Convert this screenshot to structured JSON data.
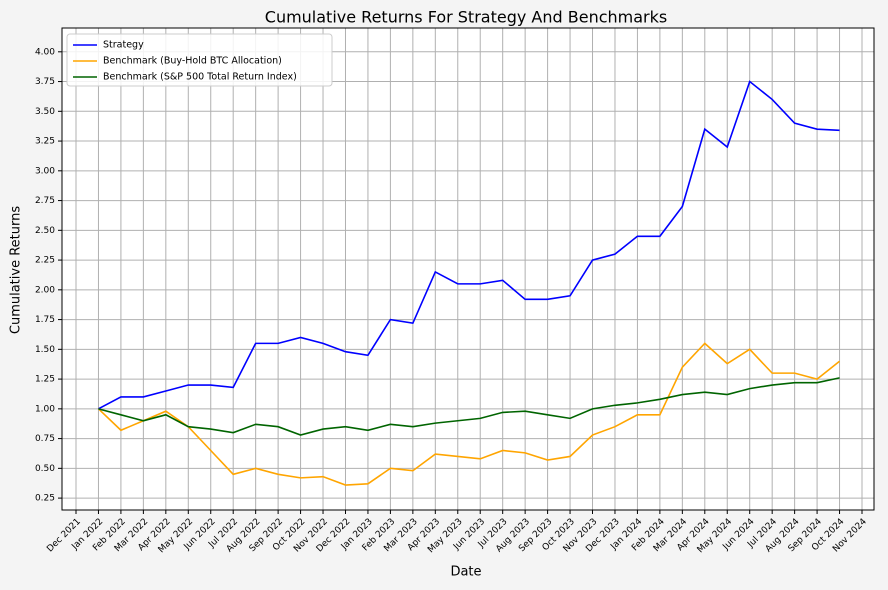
{
  "chart_data": {
    "type": "line",
    "title": "Cumulative Returns For Strategy And Benchmarks",
    "x_label": "Date",
    "y_label": "Cumulative Returns",
    "x": [
      "Jan 2022",
      "Feb 2022",
      "Mar 2022",
      "Apr 2022",
      "May 2022",
      "Jun 2022",
      "Jul 2022",
      "Aug 2022",
      "Sep 2022",
      "Oct 2022",
      "Nov 2022",
      "Dec 2022",
      "Jan 2023",
      "Feb 2023",
      "Mar 2023",
      "Apr 2023",
      "May 2023",
      "Jun 2023",
      "Jul 2023",
      "Aug 2023",
      "Sep 2023",
      "Oct 2023",
      "Nov 2023",
      "Dec 2023",
      "Jan 2024",
      "Feb 2024",
      "Mar 2024",
      "Apr 2024",
      "May 2024",
      "Jun 2024",
      "Jul 2024",
      "Aug 2024",
      "Sep 2024",
      "Oct 2024"
    ],
    "series": [
      {
        "name": "Strategy",
        "color": "#0000ff",
        "values": [
          1.0,
          1.1,
          1.1,
          1.15,
          1.2,
          1.2,
          1.18,
          1.55,
          1.55,
          1.6,
          1.55,
          1.48,
          1.45,
          1.75,
          1.72,
          2.15,
          2.05,
          2.05,
          2.08,
          1.92,
          1.92,
          1.95,
          2.25,
          2.3,
          2.45,
          2.45,
          2.7,
          3.35,
          3.2,
          3.75,
          3.6,
          3.4,
          3.35,
          3.34
        ]
      },
      {
        "name": "Benchmark (Buy-Hold BTC Allocation)",
        "color": "#ffa500",
        "values": [
          1.0,
          0.82,
          0.9,
          0.98,
          0.85,
          0.65,
          0.45,
          0.5,
          0.45,
          0.42,
          0.43,
          0.36,
          0.37,
          0.5,
          0.48,
          0.62,
          0.6,
          0.58,
          0.65,
          0.63,
          0.57,
          0.6,
          0.78,
          0.85,
          0.95,
          0.95,
          1.35,
          1.55,
          1.38,
          1.5,
          1.3,
          1.3,
          1.25,
          1.4
        ]
      },
      {
        "name": "Benchmark (S&P 500 Total Return Index)",
        "color": "#006400",
        "values": [
          1.0,
          0.95,
          0.9,
          0.95,
          0.85,
          0.83,
          0.8,
          0.87,
          0.85,
          0.78,
          0.83,
          0.85,
          0.82,
          0.87,
          0.85,
          0.88,
          0.9,
          0.92,
          0.97,
          0.98,
          0.95,
          0.92,
          1.0,
          1.03,
          1.05,
          1.08,
          1.12,
          1.14,
          1.12,
          1.17,
          1.2,
          1.22,
          1.22,
          1.26
        ]
      }
    ],
    "xticks": [
      "Dec 2021",
      "Jan 2022",
      "Feb 2022",
      "Mar 2022",
      "Apr 2022",
      "May 2022",
      "Jun 2022",
      "Jul 2022",
      "Aug 2022",
      "Sep 2022",
      "Oct 2022",
      "Nov 2022",
      "Dec 2022",
      "Jan 2023",
      "Feb 2023",
      "Mar 2023",
      "Apr 2023",
      "May 2023",
      "Jun 2023",
      "Jul 2023",
      "Aug 2023",
      "Sep 2023",
      "Oct 2023",
      "Nov 2023",
      "Dec 2023",
      "Jan 2024",
      "Feb 2024",
      "Mar 2024",
      "Apr 2024",
      "May 2024",
      "Jun 2024",
      "Jul 2024",
      "Aug 2024",
      "Sep 2024",
      "Oct 2024",
      "Nov 2024"
    ],
    "ylim": [
      0.15,
      4.2
    ],
    "yticks": [
      0.25,
      {
        "value": 0.5,
        "label": "0.50"
      },
      0.75,
      {
        "value": 1,
        "label": "1.00"
      },
      1.25,
      {
        "value": 1.5,
        "label": "1.50"
      },
      1.75,
      {
        "value": 2,
        "label": "2.00"
      },
      2.25,
      {
        "value": 2.5,
        "label": "2.50"
      },
      2.75,
      {
        "value": 3,
        "label": "3.00"
      },
      3.25,
      {
        "value": 3.5,
        "label": "3.50"
      },
      3.75,
      {
        "value": 4,
        "label": "4.00"
      }
    ],
    "grid": true,
    "legend": "upper-left"
  }
}
